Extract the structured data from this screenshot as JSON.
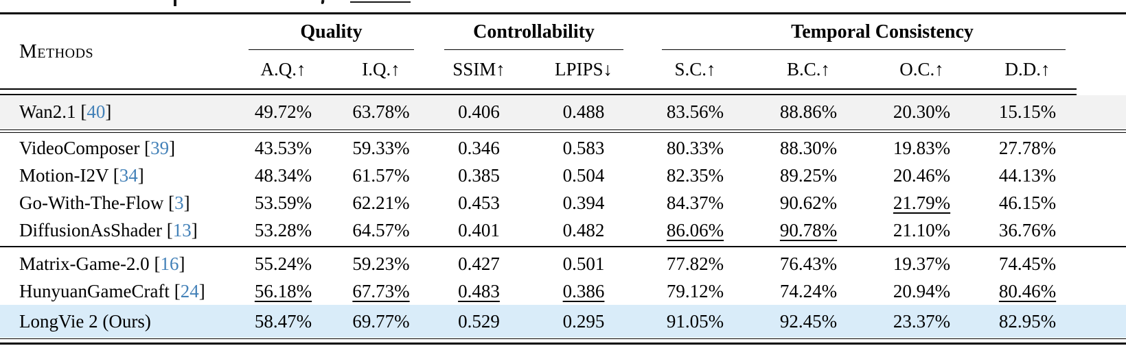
{
  "table": {
    "header": {
      "methods_label": "Methods",
      "groups": [
        {
          "label": "Quality"
        },
        {
          "label": "Controllability"
        },
        {
          "label": "Temporal Consistency"
        }
      ],
      "subcolumns": [
        "A.Q.↑",
        "I.Q.↑",
        "SSIM↑",
        "LPIPS↓",
        "S.C.↑",
        "B.C.↑",
        "O.C.↑",
        "D.D.↑"
      ]
    },
    "rows": [
      {
        "method": "Wan2.1",
        "cite": "40",
        "values": [
          "49.72%",
          "63.78%",
          "0.406",
          "0.488",
          "83.56%",
          "88.86%",
          "20.30%",
          "15.15%"
        ],
        "underline": [],
        "style": "shaded",
        "rule_after": "double"
      },
      {
        "method": "VideoComposer",
        "cite": "39",
        "values": [
          "43.53%",
          "59.33%",
          "0.346",
          "0.583",
          "80.33%",
          "88.30%",
          "19.83%",
          "27.78%"
        ],
        "underline": []
      },
      {
        "method": "Motion-I2V",
        "cite": "34",
        "values": [
          "48.34%",
          "61.57%",
          "0.385",
          "0.504",
          "82.35%",
          "89.25%",
          "20.46%",
          "44.13%"
        ],
        "underline": []
      },
      {
        "method": "Go-With-The-Flow",
        "cite": "3",
        "values": [
          "53.59%",
          "62.21%",
          "0.453",
          "0.394",
          "84.37%",
          "90.62%",
          "21.79%",
          "46.15%"
        ],
        "underline": [
          6
        ]
      },
      {
        "method": "DiffusionAsShader",
        "cite": "13",
        "values": [
          "53.28%",
          "64.57%",
          "0.401",
          "0.482",
          "86.06%",
          "90.78%",
          "21.10%",
          "36.76%"
        ],
        "underline": [
          4,
          5
        ],
        "rule_after": "single"
      },
      {
        "method": "Matrix-Game-2.0",
        "cite": "16",
        "values": [
          "55.24%",
          "59.23%",
          "0.427",
          "0.501",
          "77.82%",
          "76.43%",
          "19.37%",
          "74.45%"
        ],
        "underline": []
      },
      {
        "method": "HunyuanGameCraft",
        "cite": "24",
        "values": [
          "56.18%",
          "67.73%",
          "0.483",
          "0.386",
          "79.12%",
          "74.24%",
          "20.94%",
          "80.46%"
        ],
        "underline": [
          0,
          1,
          2,
          3,
          7
        ]
      },
      {
        "method": "LongVie 2 (Ours)",
        "cite": null,
        "values": [
          "58.47%",
          "69.77%",
          "0.529",
          "0.295",
          "91.05%",
          "92.45%",
          "23.37%",
          "82.95%"
        ],
        "underline": [],
        "style": "ours",
        "rule_after": "bottom"
      }
    ]
  },
  "colors": {
    "highlight_row_bg": "#d9ecf9",
    "shaded_row_bg": "#f2f2f2",
    "citation_blue": "#4381b8",
    "rule_black": "#000000"
  }
}
